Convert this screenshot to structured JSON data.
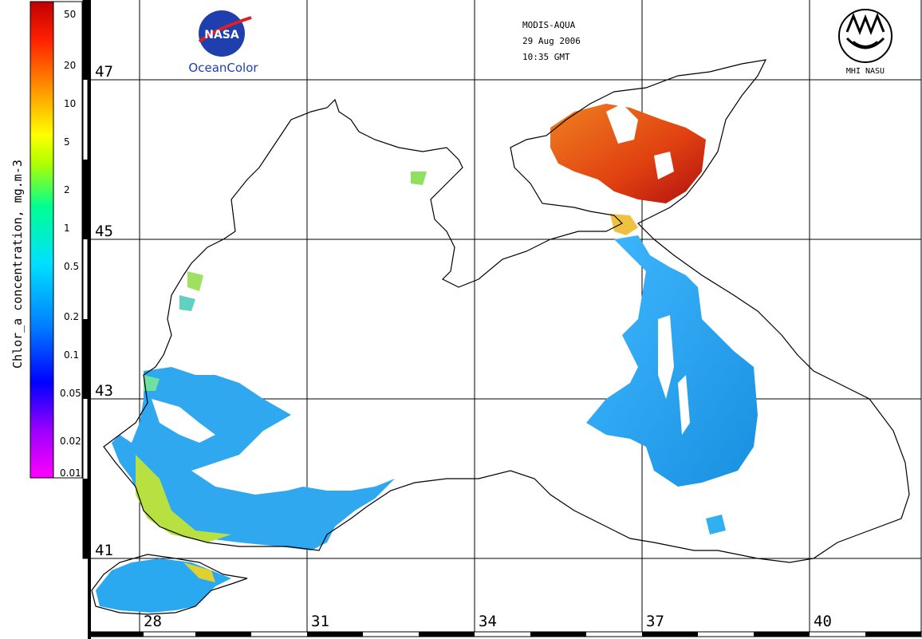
{
  "header": {
    "sensor": "MODIS-AQUA",
    "date": "29 Aug 2006",
    "time": "10:35 GMT"
  },
  "logos": {
    "nasa_text": "NASA",
    "oceancolor_text": "OceanColor",
    "mhi_text": "MHI NASU"
  },
  "colorbar": {
    "title": "Chlor_a concentration, mg.m-3",
    "ticks": [
      "50",
      "20",
      "10",
      "5",
      "2",
      "1",
      "0.5",
      "0.2",
      "0.1",
      "0.05",
      "0.02",
      "0.01"
    ],
    "colors": [
      "#ff00ff",
      "#9b00ff",
      "#0000ff",
      "#0080ff",
      "#00e0ff",
      "#00ff90",
      "#b0ff00",
      "#ffff00",
      "#ff9000",
      "#ff2000",
      "#c00000"
    ]
  },
  "grid": {
    "latitudes": [
      "47",
      "45",
      "43",
      "41"
    ],
    "longitudes": [
      "28",
      "31",
      "34",
      "37",
      "40"
    ]
  },
  "colors": {
    "land_outline": "#000000",
    "sea": "#ffffff",
    "high_chl": "#d02010",
    "mid_chl": "#f07020",
    "low_chl": "#1aa0e8"
  }
}
